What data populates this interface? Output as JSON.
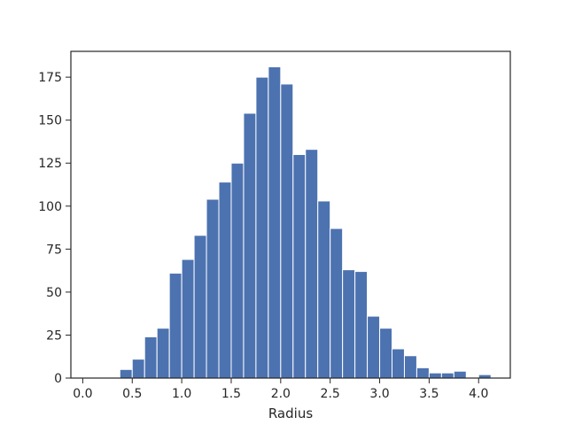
{
  "chart_data": {
    "type": "bar",
    "title": "",
    "xlabel": "Radius",
    "ylabel": "",
    "bin_width": 0.125,
    "bin_starts": [
      0.375,
      0.5,
      0.625,
      0.75,
      0.875,
      1.0,
      1.125,
      1.25,
      1.375,
      1.5,
      1.625,
      1.75,
      1.875,
      2.0,
      2.125,
      2.25,
      2.375,
      2.5,
      2.625,
      2.75,
      2.875,
      3.0,
      3.125,
      3.25,
      3.375,
      3.5,
      3.625,
      3.75,
      3.875,
      4.0
    ],
    "values": [
      5,
      11,
      24,
      29,
      61,
      69,
      83,
      104,
      114,
      125,
      154,
      175,
      181,
      171,
      130,
      133,
      103,
      87,
      63,
      62,
      36,
      29,
      17,
      13,
      6,
      3,
      3,
      4,
      0,
      2
    ],
    "xlim": [
      -0.12,
      4.32
    ],
    "ylim": [
      0,
      190
    ],
    "xticks": [
      0.0,
      0.5,
      1.0,
      1.5,
      2.0,
      2.5,
      3.0,
      3.5,
      4.0
    ],
    "xtick_labels": [
      "0.0",
      "0.5",
      "1.0",
      "1.5",
      "2.0",
      "2.5",
      "3.0",
      "3.5",
      "4.0"
    ],
    "yticks": [
      0,
      25,
      50,
      75,
      100,
      125,
      150,
      175
    ],
    "ytick_labels": [
      "0",
      "25",
      "50",
      "75",
      "100",
      "125",
      "150",
      "175"
    ],
    "grid": false,
    "bar_color": "#4c72b0"
  }
}
